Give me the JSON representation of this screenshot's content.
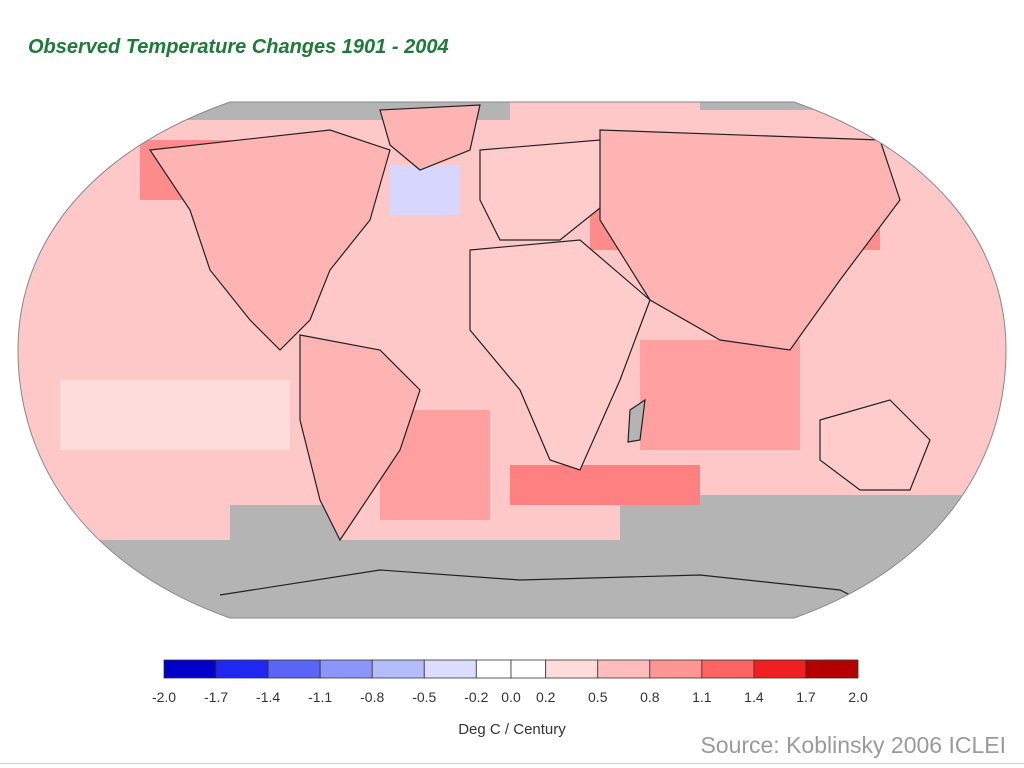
{
  "title": "Observed Temperature Changes 1901 - 2004",
  "source": "Source: Koblinsky 2006 ICLEI",
  "legend": {
    "unit_label": "Deg C / Century",
    "tick_labels": [
      "-2.0",
      "-1.7",
      "-1.4",
      "-1.1",
      "-0.8",
      "-0.5",
      "-0.2",
      "0.0",
      "0.2",
      "0.5",
      "0.8",
      "1.1",
      "1.4",
      "1.7",
      "2.0"
    ],
    "bins": [
      {
        "from": -2.0,
        "to": -1.7,
        "color": "#0000c8"
      },
      {
        "from": -1.7,
        "to": -1.4,
        "color": "#1e28f0"
      },
      {
        "from": -1.4,
        "to": -1.1,
        "color": "#5a64f5"
      },
      {
        "from": -1.1,
        "to": -0.8,
        "color": "#8c96fa"
      },
      {
        "from": -0.8,
        "to": -0.5,
        "color": "#b4bcfc"
      },
      {
        "from": -0.5,
        "to": -0.2,
        "color": "#dcdcff"
      },
      {
        "from": -0.2,
        "to": 0.0,
        "color": "#ffffff"
      },
      {
        "from": 0.0,
        "to": 0.2,
        "color": "#ffffff"
      },
      {
        "from": 0.2,
        "to": 0.5,
        "color": "#ffdcdc"
      },
      {
        "from": 0.5,
        "to": 0.8,
        "color": "#ffbcbc"
      },
      {
        "from": 0.8,
        "to": 1.1,
        "color": "#ff9696"
      },
      {
        "from": 1.1,
        "to": 1.4,
        "color": "#ff6464"
      },
      {
        "from": 1.4,
        "to": 1.7,
        "color": "#f02020"
      },
      {
        "from": 1.7,
        "to": 2.0,
        "color": "#b40000"
      }
    ]
  },
  "map_colors": {
    "no_data": "#b4b4b4",
    "border": "#222222"
  }
}
